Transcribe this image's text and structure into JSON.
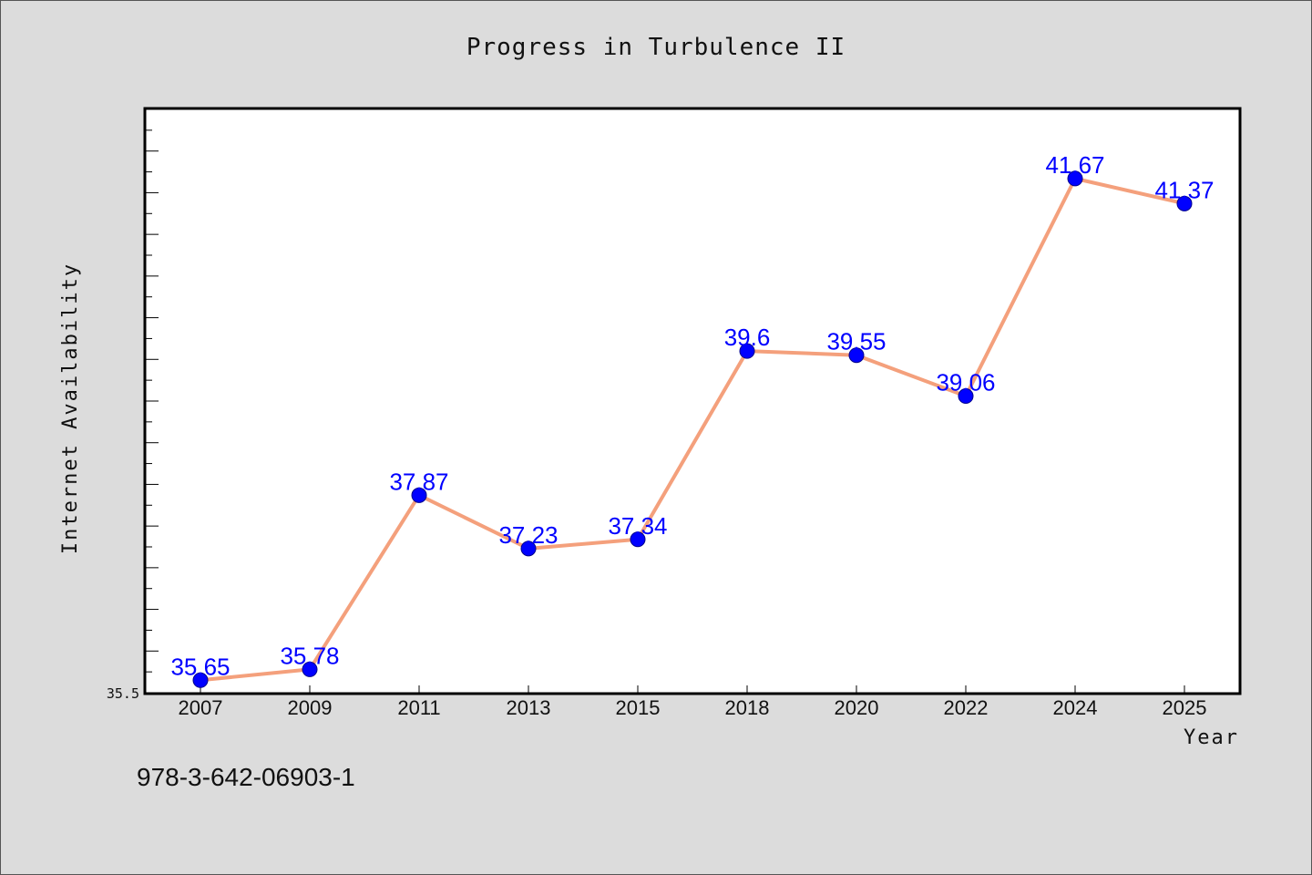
{
  "chart_data": {
    "type": "line",
    "title": "Progress in Turbulence II",
    "xlabel": "Year",
    "ylabel": "Internet Availability",
    "categories": [
      "2007",
      "2009",
      "2011",
      "2013",
      "2015",
      "2018",
      "2020",
      "2022",
      "2024",
      "2025"
    ],
    "series": [
      {
        "values": [
          35.65,
          35.78,
          37.87,
          37.23,
          37.34,
          39.6,
          39.55,
          39.06,
          41.67,
          41.37
        ],
        "labels": [
          "35.65",
          "35.78",
          "37.87",
          "37.23",
          "37.34",
          "39.6",
          "39.55",
          "39.06",
          "41.67",
          "41.37"
        ]
      }
    ],
    "ylim": [
      35.5,
      42.5
    ],
    "ytick_labels": [
      "35.5"
    ],
    "grid": false,
    "colors": {
      "line": "#f4a07c",
      "marker": "#0000ff",
      "label": "#0000ff"
    }
  },
  "annotation": "978-3-642-06903-1"
}
